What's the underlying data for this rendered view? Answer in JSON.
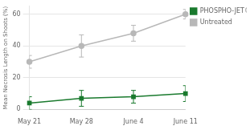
{
  "chart_data": {
    "type": "line",
    "categories": [
      "May 21",
      "May 28",
      "June 4",
      "June 11"
    ],
    "series": [
      {
        "name": "Untreated",
        "color": "#b8b8b8",
        "marker": "circle",
        "values": [
          30,
          40,
          48,
          60
        ],
        "yerr": [
          4,
          7,
          5,
          3
        ]
      },
      {
        "name": "PHOSPHO-JET®",
        "color": "#1a7a2e",
        "marker": "square",
        "values": [
          4,
          7,
          8,
          10
        ],
        "yerr": [
          4,
          5,
          4,
          5
        ]
      }
    ],
    "ylabel": "Mean Necrosis Length on Shoots (%)",
    "ylim": [
      0,
      65
    ],
    "yticks": [
      0,
      20,
      40,
      60
    ],
    "grid": true,
    "legend": "right"
  }
}
